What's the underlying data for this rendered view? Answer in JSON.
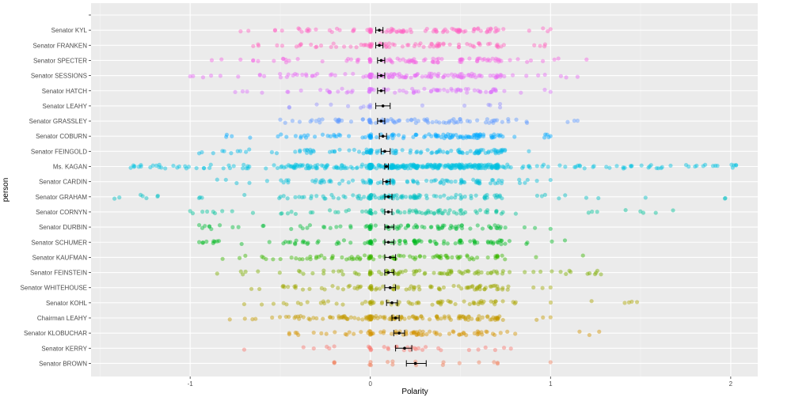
{
  "chart_data": {
    "type": "scatter",
    "title": "",
    "xlabel": "Polarity",
    "ylabel": "person",
    "xlim": [
      -1.55,
      2.15
    ],
    "xticks": [
      -1,
      0,
      1,
      2
    ],
    "grid": true,
    "legend": "none",
    "categories": [
      "",
      "Senator KYL",
      "Senator FRANKEN",
      "Senator SPECTER",
      "Senator SESSIONS",
      "Senator HATCH",
      "Senator LEAHY",
      "Senator GRASSLEY",
      "Senator COBURN",
      "Senator FEINGOLD",
      "Ms. KAGAN",
      "Senator CARDIN",
      "Senator GRAHAM",
      "Senator CORNYN",
      "Senator DURBIN",
      "Senator SCHUMER",
      "Senator KAUFMAN",
      "Senator FEINSTEIN",
      "Senator WHITEHOUSE",
      "Senator KOHL",
      "Chairman LEAHY",
      "Senator KLOBUCHAR",
      "Senator KERRY",
      "Senator BROWN"
    ],
    "series": [
      {
        "category": "Senator KYL",
        "color": "#FF61C3",
        "n": 90,
        "range": [
          -0.72,
          1.0
        ],
        "mean": 0.05,
        "ci": [
          0.03,
          0.07
        ]
      },
      {
        "category": "Senator FRANKEN",
        "color": "#FF62BC",
        "n": 80,
        "range": [
          -0.65,
          0.97
        ],
        "mean": 0.05,
        "ci": [
          0.03,
          0.07
        ]
      },
      {
        "category": "Senator SPECTER",
        "color": "#F564E3",
        "n": 85,
        "range": [
          -0.88,
          1.2
        ],
        "mean": 0.06,
        "ci": [
          0.04,
          0.08
        ]
      },
      {
        "category": "Senator SESSIONS",
        "color": "#E76BF3",
        "n": 120,
        "range": [
          -1.0,
          1.15
        ],
        "mean": 0.06,
        "ci": [
          0.04,
          0.08
        ]
      },
      {
        "category": "Senator HATCH",
        "color": "#DB72FB",
        "n": 75,
        "range": [
          -0.75,
          1.0
        ],
        "mean": 0.06,
        "ci": [
          0.04,
          0.08
        ]
      },
      {
        "category": "Senator LEAHY",
        "color": "#9590FF",
        "n": 14,
        "range": [
          -0.45,
          0.72
        ],
        "mean": 0.07,
        "ci": [
          0.03,
          0.11
        ]
      },
      {
        "category": "Senator GRASSLEY",
        "color": "#619CFF",
        "n": 85,
        "range": [
          -0.5,
          1.15
        ],
        "mean": 0.06,
        "ci": [
          0.04,
          0.08
        ]
      },
      {
        "category": "Senator COBURN",
        "color": "#00A9FF",
        "n": 110,
        "range": [
          -0.8,
          1.0
        ],
        "mean": 0.07,
        "ci": [
          0.05,
          0.09
        ]
      },
      {
        "category": "Senator FEINGOLD",
        "color": "#00B8E7",
        "n": 110,
        "range": [
          -0.95,
          0.88
        ],
        "mean": 0.08,
        "ci": [
          0.06,
          0.11
        ]
      },
      {
        "category": "Ms. KAGAN",
        "color": "#00C0DF",
        "n": 380,
        "range": [
          -1.33,
          2.03
        ],
        "mean": 0.09,
        "ci": [
          0.08,
          0.1
        ]
      },
      {
        "category": "Senator CARDIN",
        "color": "#00BCD8",
        "n": 95,
        "range": [
          -0.85,
          1.0
        ],
        "mean": 0.09,
        "ci": [
          0.07,
          0.11
        ]
      },
      {
        "category": "Senator GRAHAM",
        "color": "#00BFC4",
        "n": 120,
        "range": [
          -1.42,
          1.97
        ],
        "mean": 0.1,
        "ci": [
          0.08,
          0.12
        ]
      },
      {
        "category": "Senator CORNYN",
        "color": "#00C19A",
        "n": 85,
        "range": [
          -1.0,
          1.68
        ],
        "mean": 0.1,
        "ci": [
          0.08,
          0.12
        ]
      },
      {
        "category": "Senator DURBIN",
        "color": "#00BA38",
        "n": 85,
        "range": [
          -0.95,
          1.0
        ],
        "mean": 0.1,
        "ci": [
          0.08,
          0.13
        ]
      },
      {
        "category": "Senator SCHUMER",
        "color": "#00B81F",
        "n": 95,
        "range": [
          -0.95,
          1.08
        ],
        "mean": 0.1,
        "ci": [
          0.08,
          0.13
        ]
      },
      {
        "category": "Senator KAUFMAN",
        "color": "#39B600",
        "n": 90,
        "range": [
          -0.82,
          1.18
        ],
        "mean": 0.11,
        "ci": [
          0.08,
          0.14
        ]
      },
      {
        "category": "Senator FEINSTEIN",
        "color": "#7CAE00",
        "n": 90,
        "range": [
          -0.85,
          1.28
        ],
        "mean": 0.1,
        "ci": [
          0.08,
          0.13
        ]
      },
      {
        "category": "Senator WHITEHOUSE",
        "color": "#9DA700",
        "n": 85,
        "range": [
          -0.66,
          1.0
        ],
        "mean": 0.11,
        "ci": [
          0.08,
          0.14
        ]
      },
      {
        "category": "Senator KOHL",
        "color": "#ABA300",
        "n": 70,
        "range": [
          -0.7,
          1.48
        ],
        "mean": 0.12,
        "ci": [
          0.09,
          0.15
        ]
      },
      {
        "category": "Chairman LEAHY",
        "color": "#C49A00",
        "n": 130,
        "range": [
          -0.78,
          1.0
        ],
        "mean": 0.14,
        "ci": [
          0.12,
          0.16
        ]
      },
      {
        "category": "Senator KLOBUCHAR",
        "color": "#D39200",
        "n": 75,
        "range": [
          -0.45,
          1.27
        ],
        "mean": 0.16,
        "ci": [
          0.13,
          0.19
        ]
      },
      {
        "category": "Senator KERRY",
        "color": "#F8766D",
        "n": 30,
        "range": [
          -0.7,
          0.78
        ],
        "mean": 0.19,
        "ci": [
          0.14,
          0.23
        ]
      },
      {
        "category": "Senator BROWN",
        "color": "#F07E5C",
        "n": 16,
        "range": [
          -0.2,
          1.0
        ],
        "mean": 0.25,
        "ci": [
          0.2,
          0.31
        ]
      }
    ]
  }
}
